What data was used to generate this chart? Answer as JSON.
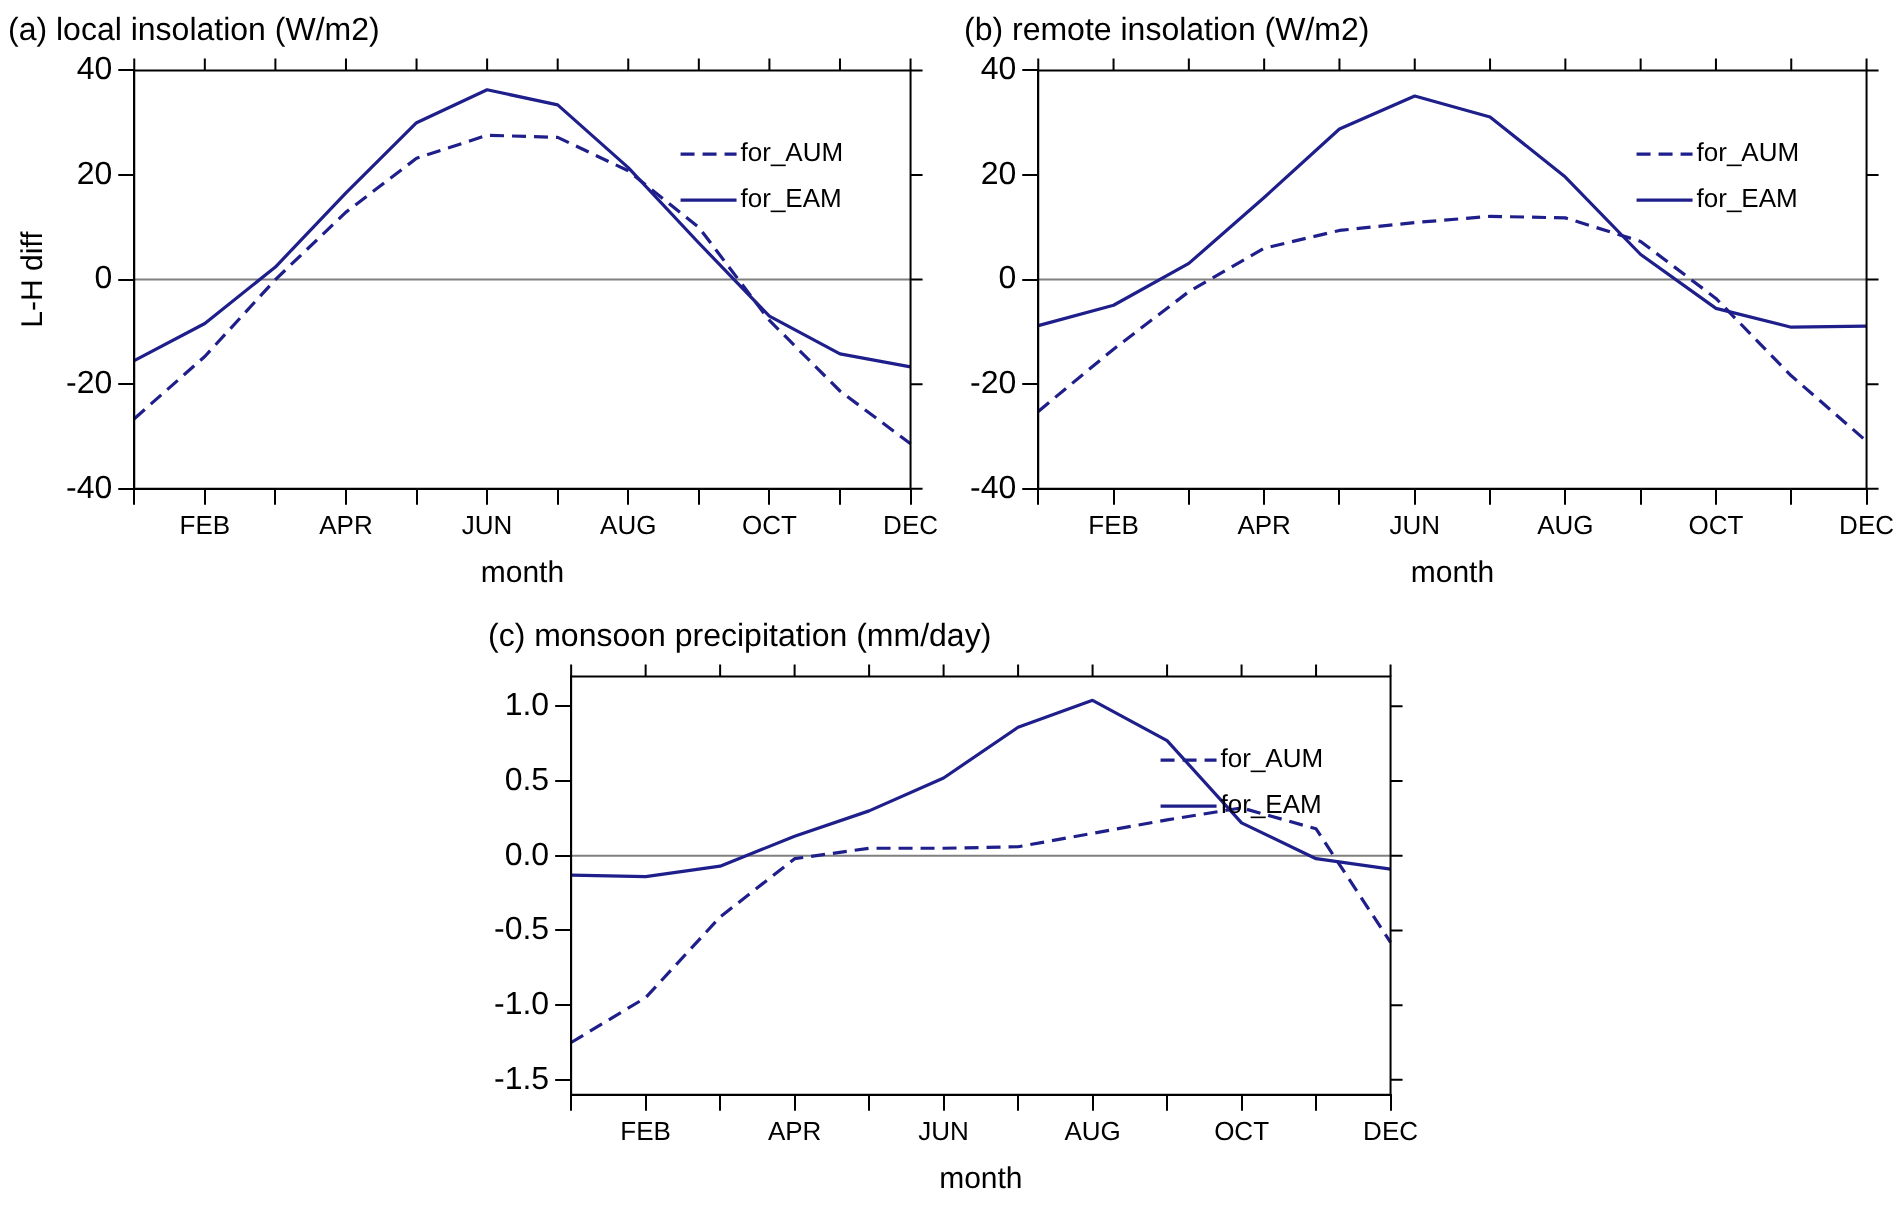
{
  "chart_data": [
    {
      "type": "line",
      "title": "(a) local insolation (W/m2)",
      "xlabel": "month",
      "ylabel": "L-H diff",
      "categories": [
        null,
        "FEB",
        null,
        "APR",
        null,
        "JUN",
        null,
        "AUG",
        null,
        "OCT",
        null,
        "DEC"
      ],
      "ylim": [
        -40,
        40
      ],
      "yticks": [
        -40,
        -20,
        0,
        20,
        40
      ],
      "grid": false,
      "legend": "top right",
      "marker": "none",
      "ref_lines": [
        {
          "axis": "y",
          "value": 0,
          "color": "#808080"
        }
      ],
      "series": [
        {
          "name": "for_AUM",
          "color": "#1f1f8c",
          "line_style": "dashed",
          "values": [
            -26.6,
            -14.7,
            0,
            12.9,
            23.2,
            27.6,
            27.2,
            20.8,
            10,
            -7.8,
            -21.3,
            -31.4
          ]
        },
        {
          "name": "for_EAM",
          "color": "#1f1f8c",
          "line_style": "solid",
          "values": [
            -15.5,
            -8.4,
            2.4,
            16.6,
            30,
            36.3,
            33.4,
            21.4,
            7,
            -7,
            -14.2,
            -16.7
          ]
        }
      ]
    },
    {
      "type": "line",
      "title": "(b) remote insolation (W/m2)",
      "xlabel": "month",
      "categories": [
        null,
        "FEB",
        null,
        "APR",
        null,
        "JUN",
        null,
        "AUG",
        null,
        "OCT",
        null,
        "DEC"
      ],
      "ylim": [
        -40,
        40
      ],
      "yticks": [
        -40,
        -20,
        0,
        20,
        40
      ],
      "grid": false,
      "legend": "top right",
      "marker": "none",
      "ref_lines": [
        {
          "axis": "y",
          "value": 0,
          "color": "#808080"
        }
      ],
      "series": [
        {
          "name": "for_AUM",
          "color": "#1f1f8c",
          "line_style": "dashed",
          "values": [
            -25.2,
            -13.3,
            -2.3,
            6,
            9.4,
            10.9,
            12.1,
            11.8,
            7.3,
            -3.6,
            -18.4,
            -30.9
          ]
        },
        {
          "name": "for_EAM",
          "color": "#1f1f8c",
          "line_style": "solid",
          "values": [
            -8.8,
            -4.9,
            3.1,
            15.7,
            28.8,
            35.1,
            31.1,
            19.6,
            4.8,
            -5.5,
            -9.1,
            -8.9
          ]
        }
      ]
    },
    {
      "type": "line",
      "title": "(c) monsoon precipitation (mm/day)",
      "xlabel": "month",
      "categories": [
        null,
        "FEB",
        null,
        "APR",
        null,
        "JUN",
        null,
        "AUG",
        null,
        "OCT",
        null,
        "DEC"
      ],
      "ylim": [
        -1.6,
        1.2
      ],
      "yticks": [
        {
          "value": -1.5,
          "label": "-1.5"
        },
        {
          "value": -1,
          "label": "-1.0"
        },
        {
          "value": -0.5,
          "label": "-0.5"
        },
        {
          "value": 0,
          "label": "0.0"
        },
        {
          "value": 0.5,
          "label": "0.5"
        },
        {
          "value": 1,
          "label": "1.0"
        }
      ],
      "grid": false,
      "legend": "top right",
      "marker": "none",
      "ref_lines": [
        {
          "axis": "y",
          "value": 0,
          "color": "#808080"
        }
      ],
      "series": [
        {
          "name": "for_AUM",
          "color": "#1f1f8c",
          "line_style": "dashed",
          "values": [
            -1.25,
            -0.95,
            -0.41,
            -0.02,
            0.05,
            0.05,
            0.06,
            0.15,
            0.24,
            0.32,
            0.18,
            -0.58
          ]
        },
        {
          "name": "for_EAM",
          "color": "#1f1f8c",
          "line_style": "solid",
          "values": [
            -0.13,
            -0.14,
            -0.07,
            0.13,
            0.3,
            0.52,
            0.86,
            1.04,
            0.77,
            0.22,
            -0.02,
            -0.09
          ]
        }
      ]
    }
  ]
}
